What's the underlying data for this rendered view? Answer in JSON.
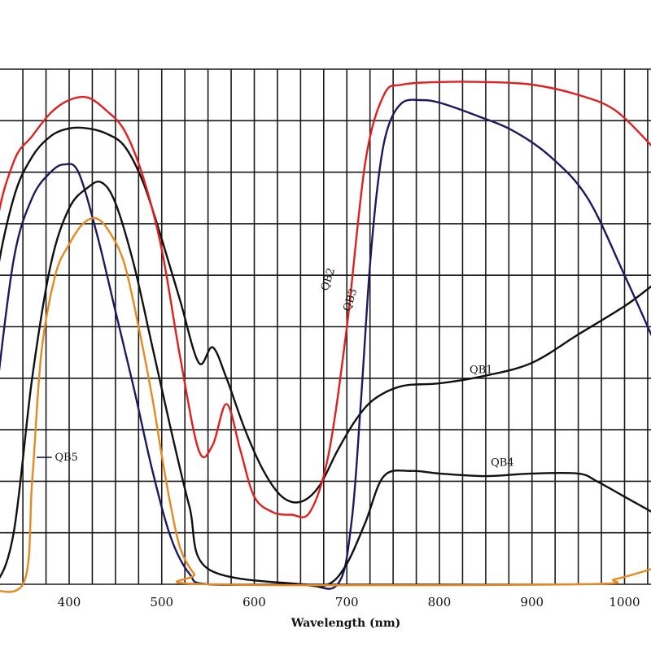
{
  "chart_data": {
    "type": "line",
    "title": "",
    "xlabel": "Wavelength  (nm)",
    "ylabel": "",
    "x_ticks": [
      400,
      500,
      600,
      700,
      800,
      900,
      1000
    ],
    "xlim": [
      300,
      1030
    ],
    "ylim": [
      0,
      100
    ],
    "grid": true,
    "series": [
      {
        "name": "QB1",
        "color": "#111111",
        "x": [
          300,
          320,
          340,
          360,
          380,
          400,
          420,
          440,
          460,
          480,
          500,
          520,
          540,
          555,
          570,
          590,
          610,
          630,
          650,
          670,
          690,
          710,
          730,
          760,
          800,
          850,
          900,
          950,
          1000,
          1030
        ],
        "y": [
          28,
          58,
          75,
          83,
          87,
          88.5,
          88.5,
          87.5,
          85,
          78,
          67,
          55,
          43,
          46,
          40,
          30,
          22,
          17,
          16,
          19,
          26,
          32,
          36,
          38.5,
          39,
          40.5,
          43,
          48.5,
          54,
          58
        ]
      },
      {
        "name": "QB2",
        "color": "#e02020",
        "x": [
          300,
          320,
          340,
          360,
          380,
          400,
          420,
          440,
          460,
          480,
          500,
          520,
          540,
          555,
          570,
          585,
          600,
          620,
          640,
          660,
          680,
          700,
          720,
          740,
          760,
          800,
          850,
          900,
          950,
          990,
          1030
        ],
        "y": [
          35,
          68,
          82,
          87,
          91.5,
          94,
          94.5,
          92,
          88,
          79,
          65,
          44,
          26,
          27,
          35,
          26,
          17,
          14,
          13.5,
          14,
          25,
          50,
          82,
          95,
          97,
          97.5,
          97.5,
          97,
          95,
          92,
          85
        ]
      },
      {
        "name": "QB3",
        "color": "#1a1a60",
        "x": [
          300,
          320,
          340,
          360,
          380,
          395,
          410,
          430,
          450,
          470,
          490,
          510,
          530,
          550,
          650,
          690,
          705,
          715,
          725,
          735,
          745,
          760,
          780,
          800,
          840,
          880,
          920,
          960,
          1000,
          1030
        ],
        "y": [
          5,
          35,
          63,
          75,
          80,
          81.5,
          80,
          68,
          53,
          38,
          22,
          9,
          2,
          0,
          0,
          0,
          12,
          35,
          62,
          80,
          89,
          93.5,
          94,
          93.5,
          91,
          88,
          83,
          75,
          60,
          48
        ]
      },
      {
        "name": "QB4",
        "color": "#111111",
        "x": [
          300,
          320,
          340,
          360,
          380,
          400,
          420,
          435,
          450,
          470,
          490,
          510,
          530,
          550,
          650,
          680,
          700,
          720,
          740,
          770,
          800,
          850,
          900,
          950,
          970,
          1000,
          1030
        ],
        "y": [
          0,
          0,
          10,
          40,
          62,
          73,
          77,
          78,
          74,
          62,
          46,
          30,
          15,
          3,
          0,
          0,
          4,
          12,
          21,
          22,
          21.5,
          21,
          21.5,
          21.5,
          20,
          17,
          14
        ]
      },
      {
        "name": "QB5",
        "color": "#e88820",
        "x": [
          300,
          350,
          360,
          370,
          385,
          400,
          415,
          430,
          445,
          460,
          475,
          490,
          500,
          510,
          520,
          535,
          550,
          950,
          990,
          1030
        ],
        "y": [
          0,
          0,
          20,
          45,
          60,
          66,
          70,
          71,
          68,
          62,
          50,
          36,
          25,
          15,
          7,
          2,
          0,
          0,
          1,
          3
        ]
      }
    ],
    "annotations": [
      {
        "label": "QB1",
        "x": 845,
        "y": 41
      },
      {
        "label": "QB2",
        "x": 683,
        "y": 59
      },
      {
        "label": "QB3",
        "x": 707,
        "y": 55
      },
      {
        "label": "QB4",
        "x": 868,
        "y": 23
      },
      {
        "label": "QB5",
        "x": 397,
        "y": 24
      }
    ]
  }
}
